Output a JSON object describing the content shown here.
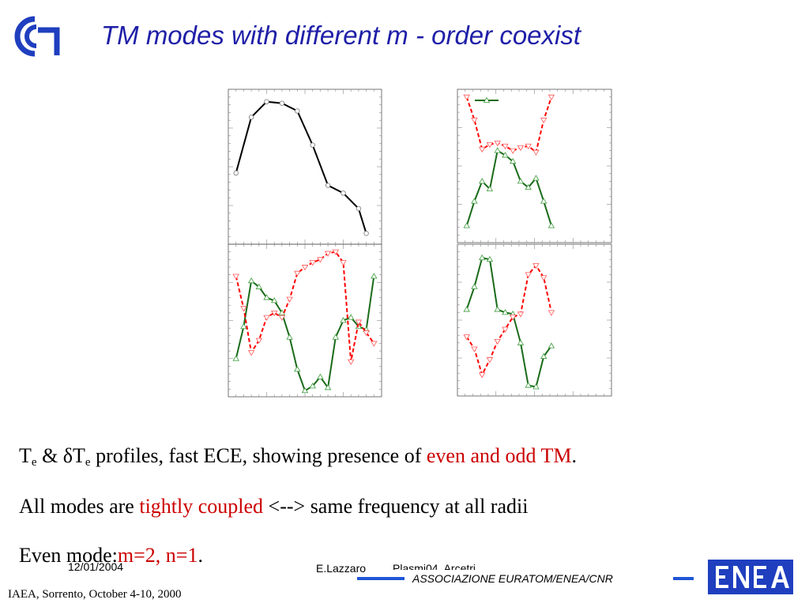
{
  "slide": {
    "title": "TM modes with different m - order coexist",
    "caption_line1": {
      "pre": "T",
      "sub1": "e",
      "amp": " & δT",
      "sub2": "e",
      "mid": " profiles, fast ECE, showing presence of ",
      "highlight": "even and odd TM",
      "post": "."
    },
    "caption_line2": {
      "pre": "All modes are ",
      "highlight": "tightly coupled",
      "post": " <--> same frequency at all radii"
    },
    "caption_line3": {
      "pre": "Even mode:",
      "highlight": "m=2, n=1",
      "post": "."
    },
    "footer": {
      "date": "12/01/2004",
      "author": "E.Lazzaro",
      "event_partial": "Plasmi04, Arcetri",
      "association": "ASSOCIAZIONE EURATOM/ENEA/CNR",
      "conference": "IAEA, Sorrento, October 4-10, 2000"
    },
    "logos": {
      "left": "cnr-logo",
      "right": "enea-logo",
      "left_color": "#1f3fbf",
      "right_color": "#1f3fbf"
    }
  },
  "chart_data": [
    {
      "type": "line",
      "position": "top-left",
      "xlim": [
        0,
        10
      ],
      "ylim": [
        0,
        10
      ],
      "grid": false,
      "series": [
        {
          "color": "#000000",
          "marker": "circle",
          "x": [
            0.5,
            1.5,
            2.5,
            3.5,
            4.5,
            5.5,
            6.5,
            7.5,
            8.5,
            9.0
          ],
          "y": [
            4.6,
            8.2,
            9.2,
            9.1,
            8.6,
            6.4,
            3.8,
            3.3,
            2.3,
            0.7
          ]
        }
      ]
    },
    {
      "type": "line",
      "position": "top-right",
      "xlim": [
        0,
        10
      ],
      "ylim": [
        0,
        10
      ],
      "grid": false,
      "legend": "top-left",
      "series": [
        {
          "color": "#1a6b1a",
          "style": "solid",
          "marker": "triangle-up",
          "x": [
            0.6,
            1.1,
            1.6,
            2.1,
            2.6,
            3.1,
            3.6,
            4.1,
            4.6,
            5.1,
            5.6,
            6.1
          ],
          "y": [
            1.1,
            2.7,
            4.0,
            3.5,
            6.0,
            5.7,
            5.3,
            4.0,
            3.6,
            4.2,
            2.7,
            1.1
          ]
        },
        {
          "color": "#ff0000",
          "style": "dashed",
          "marker": "triangle-down",
          "x": [
            0.6,
            1.1,
            1.6,
            2.1,
            2.6,
            3.1,
            3.6,
            4.1,
            4.6,
            5.1,
            5.6,
            6.1
          ],
          "y": [
            9.5,
            8.0,
            6.1,
            6.4,
            6.5,
            6.3,
            6.0,
            6.2,
            6.3,
            5.9,
            8.0,
            9.5
          ]
        }
      ]
    },
    {
      "type": "line",
      "position": "bottom-left",
      "xlim": [
        0,
        10
      ],
      "ylim": [
        0,
        10
      ],
      "grid": false,
      "series": [
        {
          "color": "#1a6b1a",
          "style": "solid",
          "marker": "triangle-up",
          "x": [
            0.5,
            1.0,
            1.5,
            2.0,
            2.5,
            3.0,
            3.5,
            4.0,
            4.5,
            5.0,
            5.5,
            6.0,
            6.5,
            7.0,
            7.5,
            8.0,
            8.5,
            9.0,
            9.5
          ],
          "y": [
            2.5,
            4.6,
            7.6,
            7.2,
            6.5,
            6.3,
            5.5,
            3.9,
            1.8,
            0.4,
            0.7,
            1.3,
            0.6,
            3.9,
            5.0,
            5.2,
            4.6,
            4.4,
            7.9
          ]
        },
        {
          "color": "#ff0000",
          "style": "dashed",
          "marker": "triangle-down",
          "x": [
            0.5,
            1.0,
            1.5,
            2.0,
            2.5,
            3.0,
            3.5,
            4.0,
            4.5,
            5.0,
            5.5,
            6.0,
            6.5,
            7.0,
            7.5,
            8.0,
            8.5,
            9.0,
            9.5
          ],
          "y": [
            7.9,
            5.8,
            2.9,
            3.7,
            5.2,
            5.5,
            5.2,
            6.4,
            8.1,
            8.5,
            8.8,
            9.0,
            9.4,
            9.5,
            8.8,
            2.3,
            4.9,
            4.2,
            3.5
          ]
        }
      ]
    },
    {
      "type": "line",
      "position": "bottom-right",
      "xlim": [
        0,
        10
      ],
      "ylim": [
        0,
        10
      ],
      "grid": false,
      "series": [
        {
          "color": "#1a6b1a",
          "style": "solid",
          "marker": "triangle-up",
          "x": [
            0.6,
            1.1,
            1.6,
            2.1,
            2.6,
            3.1,
            3.6,
            4.1,
            4.6,
            5.1,
            5.6,
            6.1
          ],
          "y": [
            5.7,
            7.2,
            9.1,
            9.0,
            5.7,
            5.5,
            5.4,
            3.5,
            0.7,
            0.6,
            2.6,
            3.3
          ]
        },
        {
          "color": "#ff0000",
          "style": "dashed",
          "marker": "triangle-down",
          "x": [
            0.6,
            1.1,
            1.6,
            2.1,
            2.6,
            3.1,
            3.6,
            4.1,
            4.6,
            5.1,
            5.6,
            6.1
          ],
          "y": [
            3.9,
            3.1,
            1.4,
            2.4,
            3.6,
            4.4,
            5.2,
            5.4,
            8.0,
            8.6,
            7.8,
            5.5
          ]
        }
      ]
    }
  ]
}
